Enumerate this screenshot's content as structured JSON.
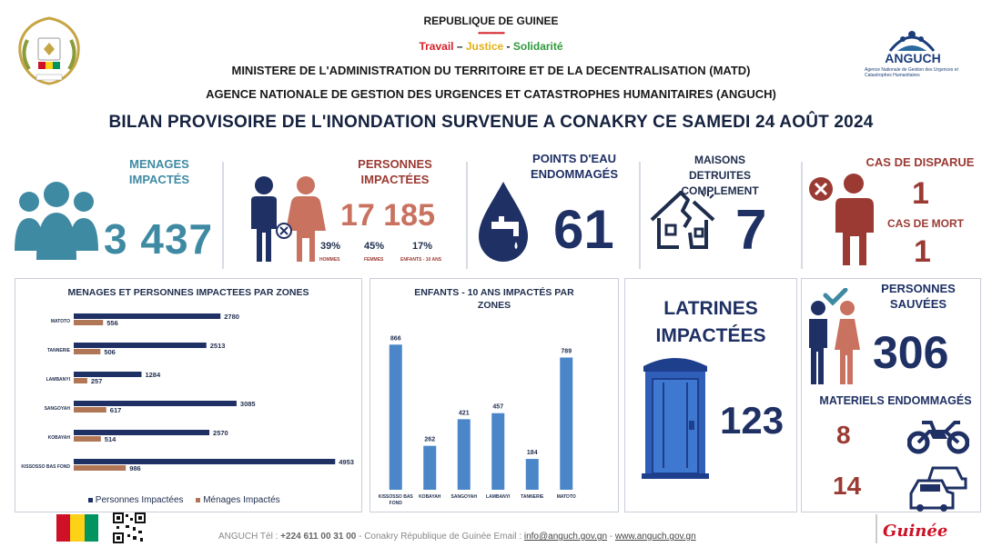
{
  "header": {
    "country": "REPUBLIQUE DE GUINEE",
    "stars": "••••••••••••••••",
    "motto": {
      "travail": "Travail",
      "sep1": " – ",
      "justice": "Justice",
      "sep2": " - ",
      "solidarite": "Solidarité"
    },
    "ministry": "MINISTERE DE L'ADMINISTRATION DU TERRITOIRE ET DE LA DECENTRALISATION (MATD)",
    "agency": "AGENCE NATIONALE DE GESTION DES URGENCES ET CATASTROPHES HUMANITAIRES (ANGUCH)",
    "title": "BILAN PROVISOIRE DE L'INONDATION SURVENUE A CONAKRY CE SAMEDI 24 AOÛT 2024",
    "logo_name": "ANGUCH",
    "logo_sub": "Agence Nationale de Gestion des Urgences et Catastrophes Humanitaires",
    "coat_motto": "TRAVAIL - JUSTICE - SOLIDARITE"
  },
  "stats": {
    "menages": {
      "label_1": "MENAGES",
      "label_2": "IMPACTÉS",
      "value": "3 437"
    },
    "personnes": {
      "label_1": "PERSONNES",
      "label_2": "IMPACTÉES",
      "value": "17 185",
      "pct_hommes": "39%",
      "pct_femmes": "45%",
      "pct_enfants": "17%",
      "lbl_hommes": "HOMMES",
      "lbl_femmes": "FEMMES",
      "lbl_enfants": "ENFANTS - 10 ANS"
    },
    "eau": {
      "label_1": "POINTS D'EAU",
      "label_2": "ENDOMMAGÉS",
      "value": "61"
    },
    "maisons": {
      "label_1": "MAISONS",
      "label_2": "DETRUITES COMPLEMENT",
      "value": "7"
    },
    "disparus": {
      "label": "CAS DE DISPARUE",
      "value": "1",
      "mort_label": "CAS DE MORT",
      "mort_value": "1"
    }
  },
  "chart_data": [
    {
      "type": "bar",
      "orientation": "horizontal",
      "title": "MENAGES ET PERSONNES IMPACTEES PAR ZONES",
      "categories": [
        "MATOTO",
        "TANNERIE",
        "LAMBANYI",
        "SANGOYAH",
        "KOBAYAH",
        "KISSOSSO BAS FOND"
      ],
      "series": [
        {
          "name": "Personnes Impactées",
          "values": [
            2780,
            2513,
            1284,
            3085,
            2570,
            4953
          ],
          "color": "#1f3064"
        },
        {
          "name": "Ménages Impactés",
          "values": [
            556,
            506,
            257,
            617,
            514,
            986
          ],
          "color": "#b07655"
        }
      ],
      "xlim": [
        0,
        5000
      ],
      "legend": "bottom"
    },
    {
      "type": "bar",
      "title": "ENFANTS - 10 ANS IMPACTÉS PAR ZONES",
      "categories": [
        "KISSOSSO BAS FOND",
        "KOBAYAH",
        "SANGOYAH",
        "LAMBANYI",
        "TANNERIE",
        "MATOTO"
      ],
      "values": [
        866,
        262,
        421,
        457,
        184,
        789
      ],
      "color": "#4a86c8",
      "ylim": [
        0,
        900
      ]
    }
  ],
  "latrines": {
    "label_1": "LATRINES",
    "label_2": "IMPACTÉES",
    "value": "123"
  },
  "sauvees": {
    "label_1": "PERSONNES",
    "label_2": "SAUVÉES",
    "value": "306"
  },
  "materiels": {
    "label": "MATERIELS ENDOMMAGÉS",
    "motos": "8",
    "voitures": "14"
  },
  "footer": {
    "prefix": "ANGUCH Tél : ",
    "phone": "+224 611 00 31 00",
    "middle": " - Conakry République de Guinée  Email : ",
    "email": "info@anguch.gov.gn",
    "dash": " - ",
    "web": "www.anguch.gov.gn",
    "brand": "Guinée"
  },
  "colors": {
    "navy": "#1f3064",
    "brown": "#b07655",
    "teal": "#3f8aa3",
    "red": "#9b3a33",
    "blue": "#4a86c8"
  }
}
